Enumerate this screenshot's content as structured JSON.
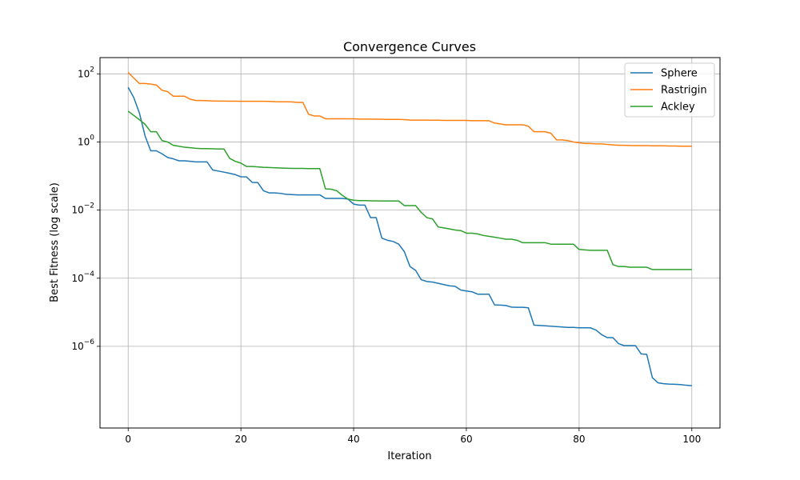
{
  "chart_data": {
    "type": "line",
    "title": "Convergence Curves",
    "xlabel": "Iteration",
    "ylabel": "Best Fitness (log scale)",
    "y_scale": "log",
    "xlim": [
      -5,
      105
    ],
    "ylim": [
      4e-09,
      300
    ],
    "grid": true,
    "legend_position": "top-right",
    "x_ticks": [
      0,
      20,
      40,
      60,
      80,
      100
    ],
    "x_tick_labels": [
      "0",
      "20",
      "40",
      "60",
      "80",
      "100"
    ],
    "y_ticks": [
      1e-06,
      0.0001,
      0.01,
      1,
      100
    ],
    "y_tick_labels": [
      {
        "base": "10",
        "exp": "−6"
      },
      {
        "base": "10",
        "exp": "−4"
      },
      {
        "base": "10",
        "exp": "−2"
      },
      {
        "base": "10",
        "exp": "0"
      },
      {
        "base": "10",
        "exp": "2"
      }
    ],
    "colors": {
      "Sphere": "#1f77b4",
      "Rastrigin": "#ff7f0e",
      "Ackley": "#2ca02c",
      "grid": "#b0b0b0"
    },
    "series": [
      {
        "name": "Sphere",
        "points": [
          [
            0,
            40
          ],
          [
            1,
            20
          ],
          [
            2,
            7
          ],
          [
            3,
            1.5
          ],
          [
            4,
            0.55
          ],
          [
            5,
            0.55
          ],
          [
            6,
            0.45
          ],
          [
            7,
            0.35
          ],
          [
            8,
            0.32
          ],
          [
            9,
            0.28
          ],
          [
            10,
            0.28
          ],
          [
            11,
            0.27
          ],
          [
            12,
            0.26
          ],
          [
            13,
            0.26
          ],
          [
            14,
            0.26
          ],
          [
            15,
            0.15
          ],
          [
            16,
            0.14
          ],
          [
            17,
            0.13
          ],
          [
            18,
            0.12
          ],
          [
            19,
            0.11
          ],
          [
            20,
            0.095
          ],
          [
            21,
            0.094
          ],
          [
            22,
            0.065
          ],
          [
            23,
            0.064
          ],
          [
            24,
            0.037
          ],
          [
            25,
            0.032
          ],
          [
            26,
            0.032
          ],
          [
            27,
            0.031
          ],
          [
            28,
            0.029
          ],
          [
            29,
            0.0285
          ],
          [
            30,
            0.028
          ],
          [
            31,
            0.028
          ],
          [
            32,
            0.028
          ],
          [
            33,
            0.028
          ],
          [
            34,
            0.028
          ],
          [
            35,
            0.022
          ],
          [
            36,
            0.022
          ],
          [
            37,
            0.022
          ],
          [
            38,
            0.022
          ],
          [
            39,
            0.021
          ],
          [
            40,
            0.015
          ],
          [
            41,
            0.014
          ],
          [
            42,
            0.014
          ],
          [
            43,
            0.006
          ],
          [
            44,
            0.006
          ],
          [
            45,
            0.0015
          ],
          [
            46,
            0.0013
          ],
          [
            47,
            0.0012
          ],
          [
            48,
            0.001
          ],
          [
            49,
            0.0006
          ],
          [
            50,
            0.00022
          ],
          [
            51,
            0.00017
          ],
          [
            52,
            9e-05
          ],
          [
            53,
            8e-05
          ],
          [
            54,
            7.7e-05
          ],
          [
            55,
            7.1e-05
          ],
          [
            56,
            6.5e-05
          ],
          [
            57,
            6e-05
          ],
          [
            58,
            5.8e-05
          ],
          [
            59,
            4.5e-05
          ],
          [
            60,
            4.2e-05
          ],
          [
            61,
            4e-05
          ],
          [
            62,
            3.4e-05
          ],
          [
            63,
            3.4e-05
          ],
          [
            64,
            3.4e-05
          ],
          [
            65,
            1.65e-05
          ],
          [
            66,
            1.62e-05
          ],
          [
            67,
            1.58e-05
          ],
          [
            68,
            1.42e-05
          ],
          [
            69,
            1.4e-05
          ],
          [
            70,
            1.4e-05
          ],
          [
            71,
            1.35e-05
          ],
          [
            72,
            4.2e-06
          ],
          [
            73,
            4.1e-06
          ],
          [
            74,
            4e-06
          ],
          [
            75,
            3.9e-06
          ],
          [
            76,
            3.8e-06
          ],
          [
            77,
            3.7e-06
          ],
          [
            78,
            3.6e-06
          ],
          [
            79,
            3.6e-06
          ],
          [
            80,
            3.5e-06
          ],
          [
            81,
            3.5e-06
          ],
          [
            82,
            3.5e-06
          ],
          [
            83,
            3e-06
          ],
          [
            84,
            2.2e-06
          ],
          [
            85,
            1.8e-06
          ],
          [
            86,
            1.8e-06
          ],
          [
            87,
            1.2e-06
          ],
          [
            88,
            1.05e-06
          ],
          [
            89,
            1.05e-06
          ],
          [
            90,
            1.05e-06
          ],
          [
            91,
            6e-07
          ],
          [
            92,
            5.8e-07
          ],
          [
            93,
            1.2e-07
          ],
          [
            94,
            8.5e-08
          ],
          [
            95,
            8e-08
          ],
          [
            96,
            7.8e-08
          ],
          [
            97,
            7.7e-08
          ],
          [
            98,
            7.5e-08
          ],
          [
            99,
            7.2e-08
          ],
          [
            100,
            7e-08
          ]
        ]
      },
      {
        "name": "Rastrigin",
        "points": [
          [
            0,
            110
          ],
          [
            1,
            75
          ],
          [
            2,
            52
          ],
          [
            3,
            52
          ],
          [
            4,
            50
          ],
          [
            5,
            47
          ],
          [
            6,
            33
          ],
          [
            7,
            30
          ],
          [
            8,
            22
          ],
          [
            9,
            22
          ],
          [
            10,
            22
          ],
          [
            11,
            18
          ],
          [
            12,
            16.5
          ],
          [
            13,
            16.5
          ],
          [
            14,
            16.3
          ],
          [
            15,
            16
          ],
          [
            16,
            15.8
          ],
          [
            17,
            15.8
          ],
          [
            18,
            15.7
          ],
          [
            19,
            15.7
          ],
          [
            20,
            15.6
          ],
          [
            21,
            15.6
          ],
          [
            22,
            15.6
          ],
          [
            23,
            15.6
          ],
          [
            24,
            15.6
          ],
          [
            25,
            15.5
          ],
          [
            26,
            15.2
          ],
          [
            27,
            15.1
          ],
          [
            28,
            15.1
          ],
          [
            29,
            15.0
          ],
          [
            30,
            14.5
          ],
          [
            31,
            14.5
          ],
          [
            32,
            6.5
          ],
          [
            33,
            5.8
          ],
          [
            34,
            5.8
          ],
          [
            35,
            4.8
          ],
          [
            36,
            4.8
          ],
          [
            37,
            4.8
          ],
          [
            38,
            4.8
          ],
          [
            39,
            4.8
          ],
          [
            40,
            4.8
          ],
          [
            41,
            4.7
          ],
          [
            42,
            4.7
          ],
          [
            43,
            4.7
          ],
          [
            44,
            4.65
          ],
          [
            45,
            4.65
          ],
          [
            46,
            4.6
          ],
          [
            47,
            4.6
          ],
          [
            48,
            4.6
          ],
          [
            49,
            4.55
          ],
          [
            50,
            4.4
          ],
          [
            51,
            4.4
          ],
          [
            52,
            4.4
          ],
          [
            53,
            4.4
          ],
          [
            54,
            4.35
          ],
          [
            55,
            4.35
          ],
          [
            56,
            4.3
          ],
          [
            57,
            4.3
          ],
          [
            58,
            4.3
          ],
          [
            59,
            4.3
          ],
          [
            60,
            4.3
          ],
          [
            61,
            4.2
          ],
          [
            62,
            4.2
          ],
          [
            63,
            4.2
          ],
          [
            64,
            4.2
          ],
          [
            65,
            3.6
          ],
          [
            66,
            3.4
          ],
          [
            67,
            3.2
          ],
          [
            68,
            3.2
          ],
          [
            69,
            3.2
          ],
          [
            70,
            3.2
          ],
          [
            71,
            2.9
          ],
          [
            72,
            2.0
          ],
          [
            73,
            2.0
          ],
          [
            74,
            2.0
          ],
          [
            75,
            1.8
          ],
          [
            76,
            1.15
          ],
          [
            77,
            1.15
          ],
          [
            78,
            1.1
          ],
          [
            79,
            1.0
          ],
          [
            80,
            0.95
          ],
          [
            81,
            0.9
          ],
          [
            82,
            0.9
          ],
          [
            83,
            0.88
          ],
          [
            84,
            0.88
          ],
          [
            85,
            0.85
          ],
          [
            86,
            0.82
          ],
          [
            87,
            0.8
          ],
          [
            88,
            0.8
          ],
          [
            89,
            0.79
          ],
          [
            90,
            0.78
          ],
          [
            91,
            0.78
          ],
          [
            92,
            0.78
          ],
          [
            93,
            0.77
          ],
          [
            94,
            0.77
          ],
          [
            95,
            0.77
          ],
          [
            96,
            0.76
          ],
          [
            97,
            0.76
          ],
          [
            98,
            0.75
          ],
          [
            99,
            0.75
          ],
          [
            100,
            0.75
          ]
        ]
      },
      {
        "name": "Ackley",
        "points": [
          [
            0,
            8
          ],
          [
            1,
            6
          ],
          [
            2,
            4.5
          ],
          [
            3,
            3.3
          ],
          [
            4,
            2.0
          ],
          [
            5,
            2.0
          ],
          [
            6,
            1.1
          ],
          [
            7,
            1.0
          ],
          [
            8,
            0.8
          ],
          [
            9,
            0.75
          ],
          [
            10,
            0.7
          ],
          [
            11,
            0.68
          ],
          [
            12,
            0.65
          ],
          [
            13,
            0.64
          ],
          [
            14,
            0.64
          ],
          [
            15,
            0.63
          ],
          [
            16,
            0.62
          ],
          [
            17,
            0.62
          ],
          [
            18,
            0.33
          ],
          [
            19,
            0.27
          ],
          [
            20,
            0.24
          ],
          [
            21,
            0.19
          ],
          [
            22,
            0.19
          ],
          [
            23,
            0.185
          ],
          [
            24,
            0.18
          ],
          [
            25,
            0.178
          ],
          [
            26,
            0.175
          ],
          [
            27,
            0.172
          ],
          [
            28,
            0.17
          ],
          [
            29,
            0.167
          ],
          [
            30,
            0.167
          ],
          [
            31,
            0.167
          ],
          [
            32,
            0.165
          ],
          [
            33,
            0.165
          ],
          [
            34,
            0.165
          ],
          [
            35,
            0.042
          ],
          [
            36,
            0.041
          ],
          [
            37,
            0.037
          ],
          [
            38,
            0.027
          ],
          [
            39,
            0.021
          ],
          [
            40,
            0.0195
          ],
          [
            41,
            0.019
          ],
          [
            42,
            0.019
          ],
          [
            43,
            0.0188
          ],
          [
            44,
            0.0186
          ],
          [
            45,
            0.0185
          ],
          [
            46,
            0.0185
          ],
          [
            47,
            0.0185
          ],
          [
            48,
            0.0185
          ],
          [
            49,
            0.0135
          ],
          [
            50,
            0.0135
          ],
          [
            51,
            0.0135
          ],
          [
            52,
            0.0085
          ],
          [
            53,
            0.006
          ],
          [
            54,
            0.0055
          ],
          [
            55,
            0.0032
          ],
          [
            56,
            0.003
          ],
          [
            57,
            0.0028
          ],
          [
            58,
            0.0026
          ],
          [
            59,
            0.0025
          ],
          [
            60,
            0.0021
          ],
          [
            61,
            0.0021
          ],
          [
            62,
            0.002
          ],
          [
            63,
            0.0018
          ],
          [
            64,
            0.0017
          ],
          [
            65,
            0.0016
          ],
          [
            66,
            0.0015
          ],
          [
            67,
            0.0014
          ],
          [
            68,
            0.0014
          ],
          [
            69,
            0.0013
          ],
          [
            70,
            0.0011
          ],
          [
            71,
            0.0011
          ],
          [
            72,
            0.0011
          ],
          [
            73,
            0.0011
          ],
          [
            74,
            0.0011
          ],
          [
            75,
            0.001
          ],
          [
            76,
            0.001
          ],
          [
            77,
            0.001
          ],
          [
            78,
            0.001
          ],
          [
            79,
            0.001
          ],
          [
            80,
            0.0007
          ],
          [
            81,
            0.00068
          ],
          [
            82,
            0.00066
          ],
          [
            83,
            0.00066
          ],
          [
            84,
            0.00066
          ],
          [
            85,
            0.00066
          ],
          [
            86,
            0.00025
          ],
          [
            87,
            0.00022
          ],
          [
            88,
            0.00022
          ],
          [
            89,
            0.00021
          ],
          [
            90,
            0.00021
          ],
          [
            91,
            0.00021
          ],
          [
            92,
            0.00021
          ],
          [
            93,
            0.00018
          ],
          [
            94,
            0.00018
          ],
          [
            95,
            0.00018
          ],
          [
            96,
            0.00018
          ],
          [
            97,
            0.00018
          ],
          [
            98,
            0.00018
          ],
          [
            99,
            0.00018
          ],
          [
            100,
            0.00018
          ]
        ]
      }
    ]
  }
}
